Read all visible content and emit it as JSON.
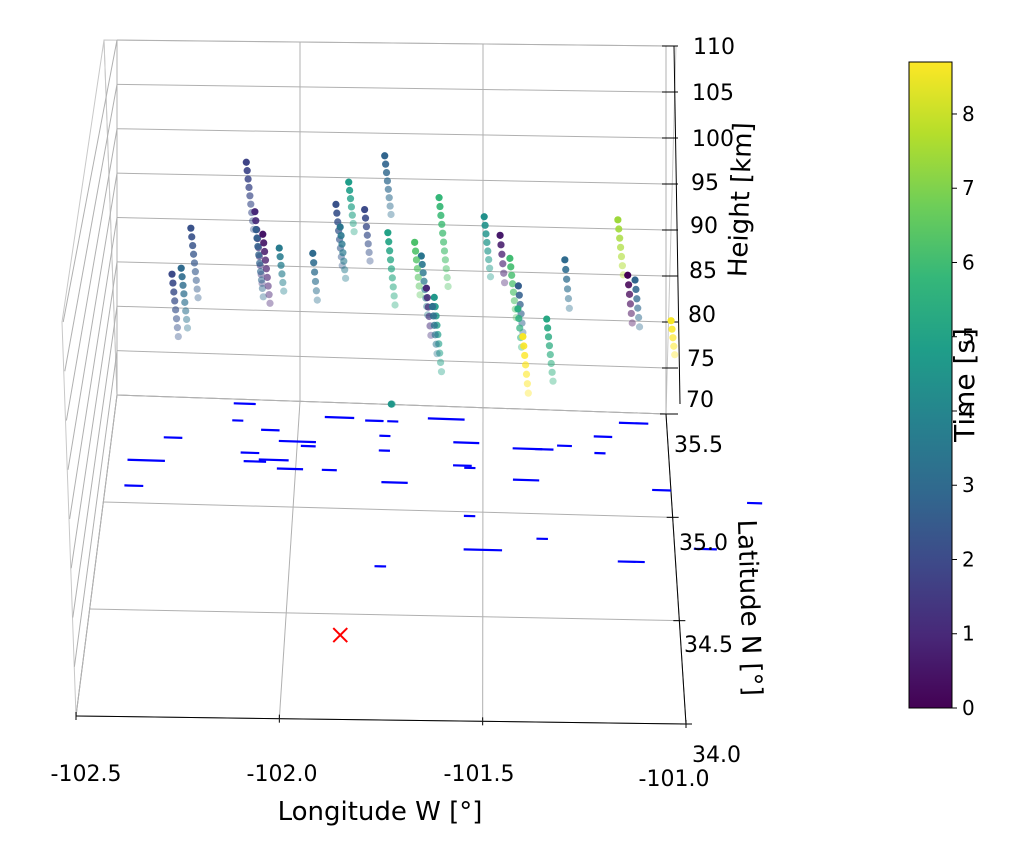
{
  "chart_data": {
    "type": "scatter",
    "projection": "3d",
    "xlabel": "Longitude W [$^{\\circ}$]",
    "xlabel_display": "Longitude W [°]",
    "ylabel": "Latitude N [°]",
    "zlabel": "Height [km]",
    "xlim": [
      -102.5,
      -101.0
    ],
    "ylim": [
      34.0,
      35.5
    ],
    "zlim": [
      70,
      110
    ],
    "x_ticks": [
      "-102.5",
      "-102.0",
      "-101.5",
      "-101.0"
    ],
    "y_ticks": [
      "34.0",
      "34.5",
      "35.0",
      "35.5"
    ],
    "z_ticks": [
      "70",
      "75",
      "80",
      "85",
      "90",
      "95",
      "100",
      "105",
      "110"
    ],
    "colorbar": {
      "label": "Time [s]",
      "range": [
        0,
        8.7
      ],
      "ticks": [
        "0",
        "1",
        "2",
        "3",
        "4",
        "5",
        "6",
        "7",
        "8"
      ],
      "colormap": "viridis"
    },
    "colormap_stops": [
      "#440154",
      "#482878",
      "#3e4989",
      "#31688e",
      "#26828e",
      "#1f9e89",
      "#35b779",
      "#6ece58",
      "#b5de2b",
      "#fde725"
    ],
    "grid": true,
    "meteors": [
      {
        "lon": -102.33,
        "lat": 35.08,
        "zt": 83.8,
        "zb": 76.8,
        "time": 2.0
      },
      {
        "lon": -102.29,
        "lat": 35.15,
        "zt": 89.0,
        "zb": 81.2,
        "time": 2.2
      },
      {
        "lon": -102.3,
        "lat": 35.05,
        "zt": 84.5,
        "zb": 77.8,
        "time": 3.0
      },
      {
        "lon": -102.15,
        "lat": 35.22,
        "zt": 96.5,
        "zb": 89.0,
        "time": 1.8
      },
      {
        "lon": -102.12,
        "lat": 35.18,
        "zt": 91.0,
        "zb": 83.0,
        "time": 1.0
      },
      {
        "lon": -102.12,
        "lat": 35.2,
        "zt": 89.0,
        "zb": 81.5,
        "time": 2.6
      },
      {
        "lon": -102.1,
        "lat": 35.19,
        "zt": 88.5,
        "zb": 80.8,
        "time": 0.5
      },
      {
        "lon": -102.06,
        "lat": 35.22,
        "zt": 87.0,
        "zb": 82.2,
        "time": 3.6
      },
      {
        "lon": -101.97,
        "lat": 35.23,
        "zt": 86.5,
        "zb": 81.3,
        "time": 3.0
      },
      {
        "lon": -101.91,
        "lat": 35.25,
        "zt": 92.0,
        "zb": 85.2,
        "time": 2.2
      },
      {
        "lon": -101.88,
        "lat": 35.28,
        "zt": 94.5,
        "zb": 89.0,
        "time": 4.8
      },
      {
        "lon": -101.9,
        "lat": 35.26,
        "zt": 89.5,
        "zb": 83.8,
        "time": 3.4
      },
      {
        "lon": -101.83,
        "lat": 35.24,
        "zt": 91.5,
        "zb": 85.8,
        "time": 2.0
      },
      {
        "lon": -101.78,
        "lat": 35.27,
        "zt": 97.5,
        "zb": 91.0,
        "time": 2.8
      },
      {
        "lon": -101.76,
        "lat": 35.2,
        "zt": 89.0,
        "zb": 81.0,
        "time": 5.0
      },
      {
        "lon": -101.68,
        "lat": 35.27,
        "zt": 86.5,
        "zb": 80.0,
        "time": 3.4
      },
      {
        "lon": -101.69,
        "lat": 35.22,
        "zt": 88.0,
        "zb": 82.2,
        "time": 6.2
      },
      {
        "lon": -101.62,
        "lat": 35.2,
        "zt": 93.0,
        "zb": 83.2,
        "time": 5.8
      },
      {
        "lon": -101.62,
        "lat": 35.12,
        "zt": 82.0,
        "zb": 73.8,
        "time": 4.6
      },
      {
        "lon": -101.63,
        "lat": 35.05,
        "zt": 83.0,
        "zb": 77.8,
        "time": 1.0
      },
      {
        "lon": -101.61,
        "lat": 35.03,
        "zt": 81.0,
        "zb": 75.8,
        "time": 3.2
      },
      {
        "lon": -101.5,
        "lat": 35.22,
        "zt": 91.0,
        "zb": 84.4,
        "time": 4.4
      },
      {
        "lon": -101.45,
        "lat": 35.18,
        "zt": 89.0,
        "zb": 83.8,
        "time": 0.6
      },
      {
        "lon": -101.42,
        "lat": 35.16,
        "zt": 86.5,
        "zb": 80.0,
        "time": 6.0
      },
      {
        "lon": -101.4,
        "lat": 35.18,
        "zt": 83.5,
        "zb": 78.4,
        "time": 2.6
      },
      {
        "lon": -101.38,
        "lat": 35.05,
        "zt": 81.0,
        "zb": 76.8,
        "time": 5.4
      },
      {
        "lon": -101.35,
        "lat": 34.95,
        "zt": 78.0,
        "zb": 71.8,
        "time": 8.6
      },
      {
        "lon": -101.28,
        "lat": 34.92,
        "zt": 80.0,
        "zb": 73.2,
        "time": 5.2
      },
      {
        "lon": -101.26,
        "lat": 35.1,
        "zt": 86.5,
        "zb": 81.2,
        "time": 3.0
      },
      {
        "lon": -101.12,
        "lat": 35.13,
        "zt": 91.0,
        "zb": 85.0,
        "time": 7.4
      },
      {
        "lon": -101.08,
        "lat": 35.05,
        "zt": 85.0,
        "zb": 79.8,
        "time": 0.0
      },
      {
        "lon": -101.06,
        "lat": 35.05,
        "zt": 84.5,
        "zb": 79.4,
        "time": 2.8
      },
      {
        "lon": -100.95,
        "lat": 34.98,
        "zt": 80.2,
        "zb": 76.5,
        "time": 8.6
      },
      {
        "lon": -101.78,
        "lat": 35.38,
        "zt": 70.0,
        "zb": 70.0,
        "time": 4.6
      }
    ],
    "ground_tracks": [
      {
        "lon": -102.18,
        "lat": 35.48,
        "len": 0.06
      },
      {
        "lon": -102.18,
        "lat": 35.4,
        "len": 0.03
      },
      {
        "lon": -102.1,
        "lat": 35.36,
        "len": 0.05
      },
      {
        "lon": -102.36,
        "lat": 35.31,
        "len": 0.05
      },
      {
        "lon": -102.05,
        "lat": 35.31,
        "len": 0.1
      },
      {
        "lon": -101.99,
        "lat": 35.29,
        "len": 0.04
      },
      {
        "lon": -102.15,
        "lat": 35.25,
        "len": 0.05
      },
      {
        "lon": -102.1,
        "lat": 35.22,
        "len": 0.08
      },
      {
        "lon": -102.14,
        "lat": 35.21,
        "len": 0.06
      },
      {
        "lon": -102.45,
        "lat": 35.2,
        "len": 0.1
      },
      {
        "lon": -102.05,
        "lat": 35.18,
        "len": 0.07
      },
      {
        "lon": -102.45,
        "lat": 35.08,
        "len": 0.05
      },
      {
        "lon": -101.93,
        "lat": 35.43,
        "len": 0.08
      },
      {
        "lon": -101.82,
        "lat": 35.42,
        "len": 0.05
      },
      {
        "lon": -101.76,
        "lat": 35.42,
        "len": 0.03
      },
      {
        "lon": -101.65,
        "lat": 35.44,
        "len": 0.1
      },
      {
        "lon": -101.78,
        "lat": 35.35,
        "len": 0.03
      },
      {
        "lon": -101.78,
        "lat": 35.28,
        "len": 0.03
      },
      {
        "lon": -101.93,
        "lat": 35.18,
        "len": 0.04
      },
      {
        "lon": -101.77,
        "lat": 35.13,
        "len": 0.07
      },
      {
        "lon": -101.58,
        "lat": 35.33,
        "len": 0.07
      },
      {
        "lon": -101.42,
        "lat": 35.31,
        "len": 0.08
      },
      {
        "lon": -101.36,
        "lat": 35.31,
        "len": 0.05
      },
      {
        "lon": -101.3,
        "lat": 35.33,
        "len": 0.04
      },
      {
        "lon": -101.42,
        "lat": 35.16,
        "len": 0.07
      },
      {
        "lon": -101.58,
        "lat": 35.22,
        "len": 0.05
      },
      {
        "lon": -101.55,
        "lat": 35.21,
        "len": 0.03
      },
      {
        "lon": -101.2,
        "lat": 35.38,
        "len": 0.05
      },
      {
        "lon": -101.13,
        "lat": 35.45,
        "len": 0.08
      },
      {
        "lon": -101.2,
        "lat": 35.3,
        "len": 0.03
      },
      {
        "lon": -101.05,
        "lat": 35.13,
        "len": 0.05
      },
      {
        "lon": -100.8,
        "lat": 35.08,
        "len": 0.04
      },
      {
        "lon": -101.55,
        "lat": 34.98,
        "len": 0.03
      },
      {
        "lon": -101.36,
        "lat": 34.88,
        "len": 0.03
      },
      {
        "lon": -101.55,
        "lat": 34.82,
        "len": 0.1
      },
      {
        "lon": -101.15,
        "lat": 34.78,
        "len": 0.07
      },
      {
        "lon": -100.95,
        "lat": 34.85,
        "len": 0.06
      },
      {
        "lon": -101.78,
        "lat": 34.73,
        "len": 0.03
      }
    ],
    "ground_color": "#0000ff",
    "station": {
      "lon": -101.86,
      "lat": 34.4,
      "marker": "x",
      "color": "#ff0000"
    }
  }
}
